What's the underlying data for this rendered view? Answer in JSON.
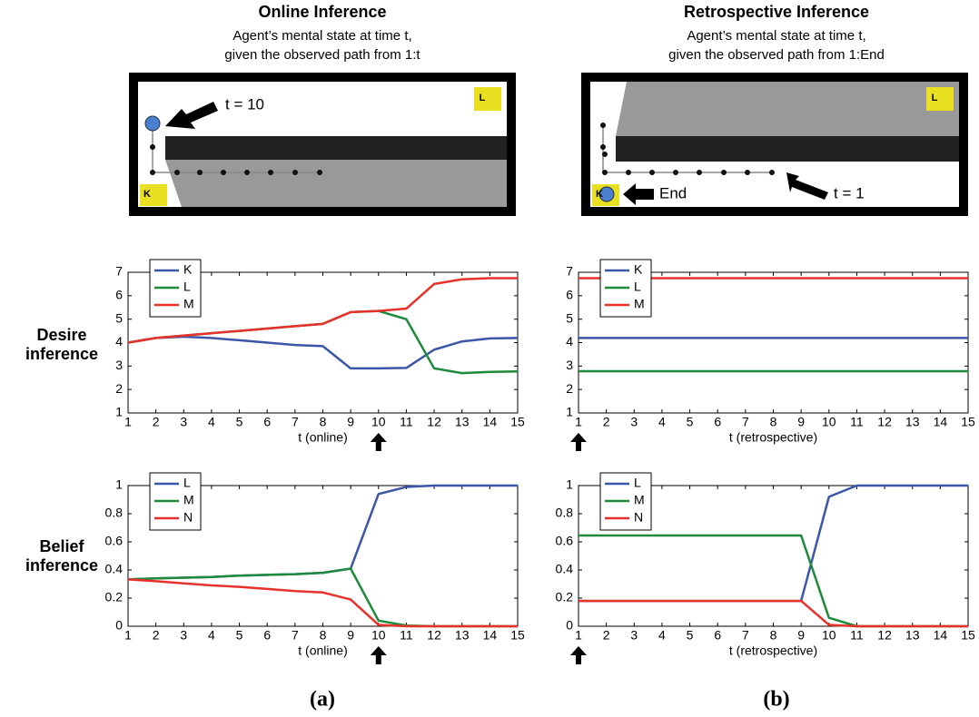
{
  "columns": [
    {
      "title": "Online Inference",
      "subtitle_lines": [
        "Agent’s mental state at time t,",
        "given the observed path from 1:t"
      ],
      "map": {
        "trucks": [
          "K",
          "L"
        ],
        "annotations": [
          "t = 10"
        ]
      },
      "panel_label": "(a)"
    },
    {
      "title": "Retrospective Inference",
      "subtitle_lines": [
        "Agent’s mental state at time t,",
        "given the observed path from 1:End"
      ],
      "map": {
        "trucks": [
          "K",
          "L"
        ],
        "annotations": [
          "End",
          "t = 1"
        ]
      },
      "panel_label": "(b)"
    }
  ],
  "row_labels": [
    [
      "Desire",
      "inference"
    ],
    [
      "Belief",
      "inference"
    ]
  ],
  "chart_data": [
    {
      "type": "line",
      "xlabel": "t (online)",
      "arrow_at": 10,
      "x": [
        1,
        2,
        3,
        4,
        5,
        6,
        7,
        8,
        9,
        10,
        11,
        12,
        13,
        14,
        15
      ],
      "xlim": [
        1,
        15
      ],
      "xticks": [
        1,
        2,
        3,
        4,
        5,
        6,
        7,
        8,
        9,
        10,
        11,
        12,
        13,
        14,
        15
      ],
      "ylim": [
        1,
        7
      ],
      "yticks": [
        1,
        2,
        3,
        4,
        5,
        6,
        7
      ],
      "legend": "upper-left",
      "series": [
        {
          "name": "K",
          "color": "#3b55a8",
          "values": [
            4,
            4.2,
            4.25,
            4.2,
            4.1,
            4.0,
            3.9,
            3.85,
            2.9,
            2.9,
            2.92,
            3.7,
            4.05,
            4.18,
            4.2
          ]
        },
        {
          "name": "L",
          "color": "#1e8a3c",
          "values": [
            4,
            4.2,
            4.3,
            4.4,
            4.5,
            4.6,
            4.7,
            4.8,
            5.3,
            5.35,
            5.0,
            2.9,
            2.7,
            2.75,
            2.77
          ]
        },
        {
          "name": "M",
          "color": "#e8312b",
          "values": [
            4,
            4.2,
            4.3,
            4.4,
            4.5,
            4.6,
            4.7,
            4.8,
            5.3,
            5.35,
            5.45,
            6.5,
            6.7,
            6.75,
            6.75
          ]
        }
      ]
    },
    {
      "type": "line",
      "xlabel": "t (retrospective)",
      "arrow_at": 1,
      "x": [
        1,
        2,
        3,
        4,
        5,
        6,
        7,
        8,
        9,
        10,
        11,
        12,
        13,
        14,
        15
      ],
      "xlim": [
        1,
        15
      ],
      "xticks": [
        1,
        2,
        3,
        4,
        5,
        6,
        7,
        8,
        9,
        10,
        11,
        12,
        13,
        14,
        15
      ],
      "ylim": [
        1,
        7
      ],
      "yticks": [
        1,
        2,
        3,
        4,
        5,
        6,
        7
      ],
      "legend": "upper-left",
      "series": [
        {
          "name": "K",
          "color": "#3b55a8",
          "values": [
            4.2,
            4.2,
            4.2,
            4.2,
            4.2,
            4.2,
            4.2,
            4.2,
            4.2,
            4.2,
            4.2,
            4.2,
            4.2,
            4.2,
            4.2
          ]
        },
        {
          "name": "L",
          "color": "#1e8a3c",
          "values": [
            2.78,
            2.78,
            2.78,
            2.78,
            2.78,
            2.78,
            2.78,
            2.78,
            2.78,
            2.78,
            2.78,
            2.78,
            2.78,
            2.78,
            2.78
          ]
        },
        {
          "name": "M",
          "color": "#e8312b",
          "values": [
            6.75,
            6.75,
            6.75,
            6.75,
            6.75,
            6.75,
            6.75,
            6.75,
            6.75,
            6.75,
            6.75,
            6.75,
            6.75,
            6.75,
            6.75
          ]
        }
      ]
    },
    {
      "type": "line",
      "xlabel": "t (online)",
      "arrow_at": 10,
      "x": [
        1,
        2,
        3,
        4,
        5,
        6,
        7,
        8,
        9,
        10,
        11,
        12,
        13,
        14,
        15
      ],
      "xlim": [
        1,
        15
      ],
      "xticks": [
        1,
        2,
        3,
        4,
        5,
        6,
        7,
        8,
        9,
        10,
        11,
        12,
        13,
        14,
        15
      ],
      "ylim": [
        0,
        1
      ],
      "yticks": [
        0,
        0.2,
        0.4,
        0.6,
        0.8,
        1
      ],
      "legend": "upper-left",
      "series": [
        {
          "name": "L",
          "color": "#3b55a8",
          "values": [
            0.333,
            0.34,
            0.345,
            0.35,
            0.36,
            0.365,
            0.37,
            0.38,
            0.41,
            0.94,
            0.99,
            1,
            1,
            1,
            1
          ]
        },
        {
          "name": "M",
          "color": "#1e8a3c",
          "values": [
            0.333,
            0.34,
            0.345,
            0.35,
            0.36,
            0.365,
            0.37,
            0.38,
            0.41,
            0.04,
            0.005,
            0,
            0,
            0,
            0
          ]
        },
        {
          "name": "N",
          "color": "#e8312b",
          "values": [
            0.333,
            0.32,
            0.305,
            0.29,
            0.28,
            0.265,
            0.25,
            0.24,
            0.19,
            0.01,
            0,
            0,
            0,
            0,
            0
          ]
        }
      ]
    },
    {
      "type": "line",
      "xlabel": "t (retrospective)",
      "arrow_at": 1,
      "x": [
        1,
        2,
        3,
        4,
        5,
        6,
        7,
        8,
        9,
        10,
        11,
        12,
        13,
        14,
        15
      ],
      "xlim": [
        1,
        15
      ],
      "xticks": [
        1,
        2,
        3,
        4,
        5,
        6,
        7,
        8,
        9,
        10,
        11,
        12,
        13,
        14,
        15
      ],
      "ylim": [
        0,
        1
      ],
      "yticks": [
        0,
        0.2,
        0.4,
        0.6,
        0.8,
        1
      ],
      "legend": "upper-left",
      "series": [
        {
          "name": "L",
          "color": "#3b55a8",
          "values": [
            0.18,
            0.18,
            0.18,
            0.18,
            0.18,
            0.18,
            0.18,
            0.18,
            0.18,
            0.92,
            1,
            1,
            1,
            1,
            1
          ]
        },
        {
          "name": "M",
          "color": "#1e8a3c",
          "values": [
            0.645,
            0.645,
            0.645,
            0.645,
            0.645,
            0.645,
            0.645,
            0.645,
            0.645,
            0.06,
            0,
            0,
            0,
            0,
            0
          ]
        },
        {
          "name": "N",
          "color": "#e8312b",
          "values": [
            0.18,
            0.18,
            0.18,
            0.18,
            0.18,
            0.18,
            0.18,
            0.18,
            0.18,
            0.01,
            0,
            0,
            0,
            0,
            0
          ]
        }
      ]
    }
  ]
}
